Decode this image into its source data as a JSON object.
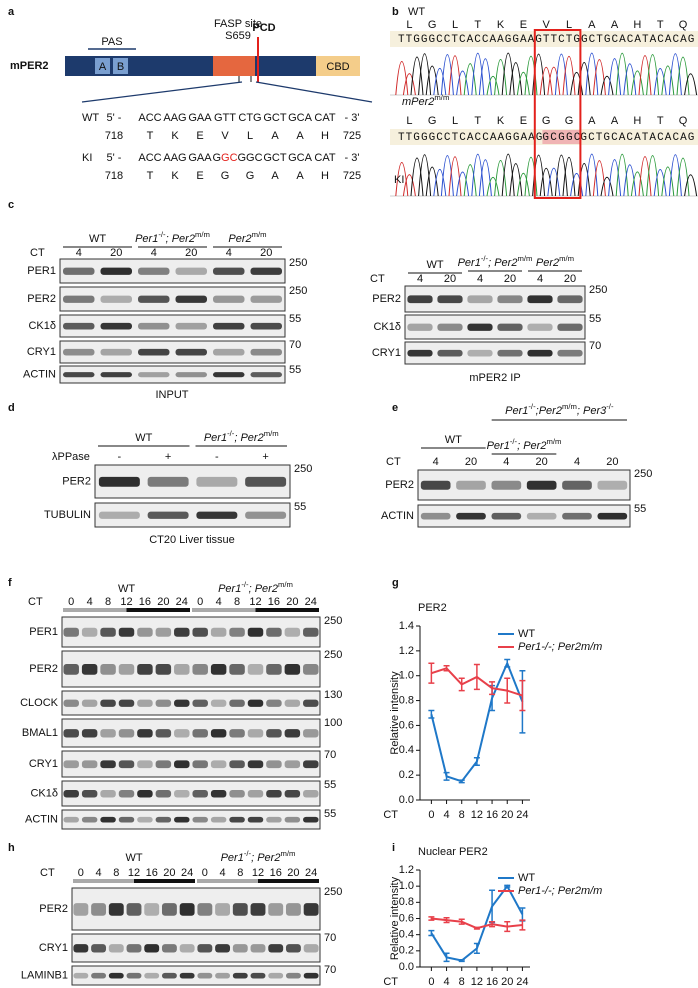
{
  "letters": [
    "a",
    "b",
    "c",
    "d",
    "e",
    "f",
    "g",
    "h",
    "i"
  ],
  "panel_a": {
    "protein": "mPER2",
    "pas": "PAS",
    "domains": [
      "A",
      "B"
    ],
    "cbd": "CBD",
    "site": "FASP site",
    "residue": "S659",
    "pcd": "PCD",
    "rows": [
      {
        "label": "WT",
        "seq": [
          "5' -",
          "ACC",
          "AAG",
          "GAA",
          "GTT",
          "CTG",
          "GCT",
          "GCA",
          "CAT",
          "- 3'"
        ],
        "aa": [
          "718",
          "T",
          "K",
          "E",
          "V",
          "L",
          "A",
          "A",
          "H",
          "725"
        ]
      },
      {
        "label": "KI",
        "seq": [
          "5' -",
          "ACC",
          "AAG",
          "GAA",
          [
            {
              "text": "G"
            },
            {
              "text": "GC",
              "color": "#e3211c"
            }
          ],
          {
            "text": "GGC",
            "color": "#e3211c"
          },
          "GCT",
          "GCA",
          "CAT",
          "- 3'"
        ],
        "aa": [
          "718",
          "T",
          "K",
          "E",
          {
            "text": "G",
            "color": "#e3211c"
          },
          {
            "text": "G",
            "color": "#e3211c"
          },
          "A",
          "A",
          "H",
          "725"
        ]
      }
    ]
  },
  "panel_b": {
    "wt_label": "WT",
    "mut_label": [
      "mPer2",
      "m/m"
    ],
    "ki_label": "KI",
    "wt_aa": [
      "L",
      "G",
      "L",
      "T",
      "K",
      "E",
      "V",
      "L",
      "A",
      "A",
      "H",
      "T",
      "Q"
    ],
    "wt_seq": "TTGGGCCTCACCAAGGAAGTTCTGGCTGCACATACACAG",
    "mut_aa": [
      "L",
      "G",
      "L",
      "T",
      "K",
      "E",
      {
        "text": "G",
        "color": "#e3211c"
      },
      {
        "text": "G",
        "color": "#e3211c"
      },
      "A",
      "A",
      "H",
      "T",
      "Q"
    ],
    "mut_seq": [
      {
        "text": "TTGGGCCTCACCAAGGAAG"
      },
      {
        "text": "GCGGC",
        "highlight": "#f0b4b4"
      },
      {
        "text": "GCTGCACATACACAG"
      }
    ],
    "box_color": "#e3211c"
  },
  "blots": [
    {
      "groups": [
        "WT",
        [
          "Per1",
          "-/-",
          "; Per2",
          "m/m"
        ],
        [
          "Per2",
          "m/m"
        ]
      ],
      "lane_header": "CT",
      "lane_labels": [
        4,
        20,
        4,
        20,
        4,
        20
      ],
      "rows": [
        "PER1",
        "PER2",
        "CK1δ",
        "CRY1",
        "ACTIN"
      ],
      "mw": [
        250,
        250,
        55,
        70,
        55
      ],
      "caption": "INPUT"
    },
    {
      "groups": [
        "WT",
        [
          "Per1",
          "-/-",
          "; Per2",
          "m/m"
        ],
        [
          "Per2",
          "m/m"
        ]
      ],
      "lane_header": "CT",
      "lane_labels": [
        4,
        20,
        4,
        20,
        4,
        20
      ],
      "rows": [
        "PER2",
        "CK1δ",
        "CRY1"
      ],
      "mw": [
        250,
        55,
        70
      ],
      "caption": "mPER2 IP"
    },
    {
      "groups": [
        "WT",
        [
          "Per1",
          "-/-",
          "; Per2",
          "m/m"
        ]
      ],
      "lane_header": "λPPase",
      "lane_labels": [
        "-",
        "+",
        "-",
        "+"
      ],
      "rows": [
        "PER2",
        "TUBULIN"
      ],
      "mw": [
        250,
        55
      ],
      "caption": "CT20 Liver tissue"
    },
    {
      "top_group": [
        "Per1",
        "-/-",
        ";Per2",
        "m/m",
        "; Per3",
        "-/-"
      ],
      "groups": [
        "WT",
        [
          "Per1",
          "-/-",
          "; Per2",
          "m/m"
        ]
      ],
      "lane_header": "CT",
      "lane_labels": [
        4,
        20,
        4,
        20,
        4,
        20
      ],
      "rows": [
        "PER2",
        "ACTIN"
      ],
      "mw": [
        250,
        55
      ]
    },
    {
      "groups": [
        "WT",
        [
          "Per1",
          "-/-",
          "; Per2",
          "m/m"
        ]
      ],
      "lane_header": "CT",
      "lane_labels": [
        0,
        4,
        8,
        12,
        16,
        20,
        24,
        0,
        4,
        8,
        12,
        16,
        20,
        24
      ],
      "rows": [
        "PER1",
        "PER2",
        "CLOCK",
        "BMAL1",
        "CRY1",
        "CK1δ",
        "ACTIN"
      ],
      "mw": [
        250,
        250,
        130,
        100,
        70,
        55,
        55
      ]
    },
    {
      "groups": [
        "WT",
        [
          "Per1",
          "-/-",
          "; Per2",
          "m/m"
        ]
      ],
      "lane_header": "CT",
      "lane_labels": [
        0,
        4,
        8,
        12,
        16,
        20,
        24,
        0,
        4,
        8,
        12,
        16,
        20,
        24
      ],
      "rows": [
        "PER2",
        "CRY1",
        "LAMINB1"
      ],
      "mw": [
        250,
        70,
        70
      ]
    }
  ],
  "chart_data": [
    {
      "type": "line",
      "title": "PER2",
      "xlabel": "CT",
      "ylabel": "Relative intensity",
      "x": [
        0,
        4,
        8,
        12,
        16,
        20,
        24
      ],
      "xlim": [
        -3,
        26
      ],
      "xticks": [
        0,
        4,
        8,
        12,
        16,
        20,
        24
      ],
      "ylim": [
        0,
        1.4
      ],
      "yticks": [
        {
          "value": 0,
          "label": "0.0"
        },
        0.2,
        0.4,
        0.6,
        0.8,
        {
          "value": 1,
          "label": "1.0"
        },
        1.2,
        1.4
      ],
      "legend": "upper right",
      "series": [
        {
          "name": "WT",
          "color": "#1f78c8",
          "values": [
            0.69,
            0.19,
            0.15,
            0.31,
            0.82,
            1.1,
            0.79
          ],
          "errors": [
            0.03,
            0.03,
            0.01,
            0.03,
            0.1,
            0.03,
            0.25
          ]
        },
        {
          "name": "Per1-/-; Per2m/m",
          "color": "#e8404a",
          "values": [
            1.02,
            1.06,
            0.93,
            0.99,
            0.9,
            0.88,
            0.84
          ],
          "errors": [
            0.08,
            0.02,
            0.05,
            0.1,
            0.05,
            0.1,
            0.12
          ]
        }
      ]
    },
    {
      "type": "line",
      "title": "Nuclear PER2",
      "xlabel": "CT",
      "ylabel": "Relative intensity",
      "x": [
        0,
        4,
        8,
        12,
        16,
        20,
        24
      ],
      "xlim": [
        -3,
        26
      ],
      "xticks": [
        0,
        4,
        8,
        12,
        16,
        20,
        24
      ],
      "ylim": [
        0,
        1.2
      ],
      "yticks": [
        {
          "value": 0,
          "label": "0.0"
        },
        0.2,
        0.4,
        0.6,
        0.8,
        {
          "value": 1,
          "label": "1.0"
        },
        1.2
      ],
      "legend": "upper right",
      "series": [
        {
          "name": "WT",
          "color": "#1f78c8",
          "values": [
            0.42,
            0.12,
            0.08,
            0.23,
            0.75,
            1.0,
            0.65
          ],
          "errors": [
            0.03,
            0.05,
            0.01,
            0.06,
            0.2,
            0.01,
            0.08
          ]
        },
        {
          "name": "Per1-/-; Per2m/m",
          "color": "#e8404a",
          "values": [
            0.6,
            0.58,
            0.56,
            0.48,
            0.53,
            0.5,
            0.52
          ],
          "errors": [
            0.02,
            0.03,
            0.03,
            0.01,
            0.03,
            0.06,
            0.06
          ]
        }
      ]
    }
  ]
}
